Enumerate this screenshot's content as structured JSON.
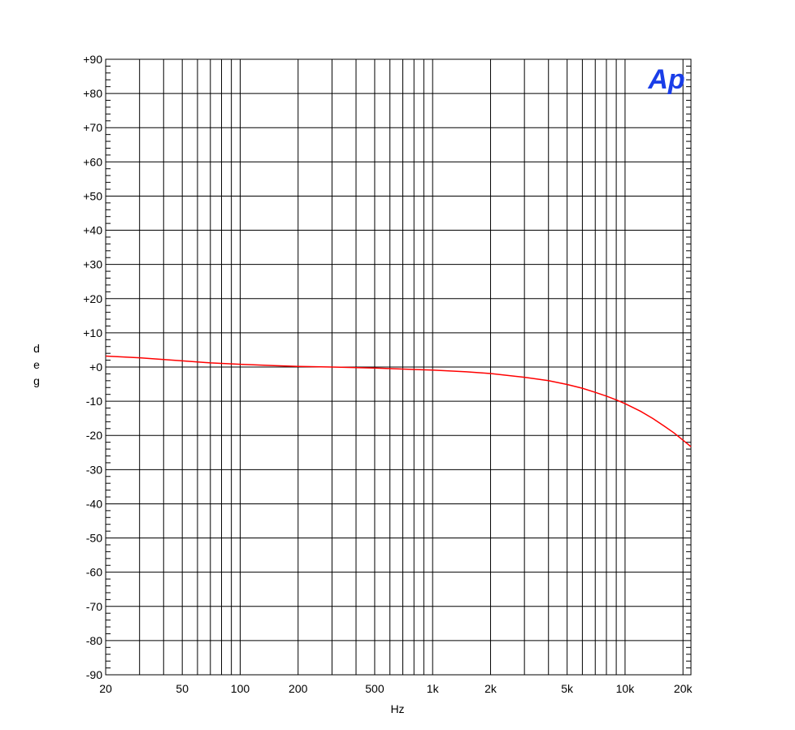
{
  "logo": {
    "text": "Ap",
    "color": "#1a3ee8"
  },
  "colors": {
    "grid": "#000000",
    "trace": "#ff0000",
    "background": "#ffffff"
  },
  "chart_data": {
    "type": "line",
    "xlabel": "Hz",
    "ylabel": "deg",
    "x_scale": "log",
    "xlim": [
      20,
      22000
    ],
    "ylim": [
      -90,
      90
    ],
    "grid": true,
    "x_ticks": [
      {
        "value": 20,
        "label": "20"
      },
      {
        "value": 50,
        "label": "50"
      },
      {
        "value": 100,
        "label": "100"
      },
      {
        "value": 200,
        "label": "200"
      },
      {
        "value": 500,
        "label": "500"
      },
      {
        "value": 1000,
        "label": "1k"
      },
      {
        "value": 2000,
        "label": "2k"
      },
      {
        "value": 5000,
        "label": "5k"
      },
      {
        "value": 10000,
        "label": "10k"
      },
      {
        "value": 20000,
        "label": "20k"
      }
    ],
    "y_ticks": [
      {
        "value": 90,
        "label": "+90"
      },
      {
        "value": 80,
        "label": "+80"
      },
      {
        "value": 70,
        "label": "+70"
      },
      {
        "value": 60,
        "label": "+60"
      },
      {
        "value": 50,
        "label": "+50"
      },
      {
        "value": 40,
        "label": "+40"
      },
      {
        "value": 30,
        "label": "+30"
      },
      {
        "value": 20,
        "label": "+20"
      },
      {
        "value": 10,
        "label": "+10"
      },
      {
        "value": 0,
        "label": "+0"
      },
      {
        "value": -10,
        "label": "-10"
      },
      {
        "value": -20,
        "label": "-20"
      },
      {
        "value": -30,
        "label": "-30"
      },
      {
        "value": -40,
        "label": "-40"
      },
      {
        "value": -50,
        "label": "-50"
      },
      {
        "value": -60,
        "label": "-60"
      },
      {
        "value": -70,
        "label": "-70"
      },
      {
        "value": -80,
        "label": "-80"
      },
      {
        "value": -90,
        "label": "-90"
      }
    ],
    "series": [
      {
        "color": "#ff0000",
        "x": [
          20,
          30,
          50,
          70,
          100,
          150,
          200,
          300,
          500,
          700,
          1000,
          1500,
          2000,
          3000,
          4000,
          5000,
          6000,
          7000,
          8000,
          9000,
          10000,
          12000,
          14000,
          16000,
          18000,
          20000,
          22000
        ],
        "y": [
          3.2,
          2.7,
          1.8,
          1.2,
          0.8,
          0.4,
          0.2,
          0.0,
          -0.3,
          -0.6,
          -0.9,
          -1.4,
          -1.9,
          -3.0,
          -4.0,
          -5.1,
          -6.2,
          -7.4,
          -8.5,
          -9.6,
          -10.7,
          -12.9,
          -15.1,
          -17.3,
          -19.3,
          -21.4,
          -23.3
        ]
      }
    ]
  }
}
